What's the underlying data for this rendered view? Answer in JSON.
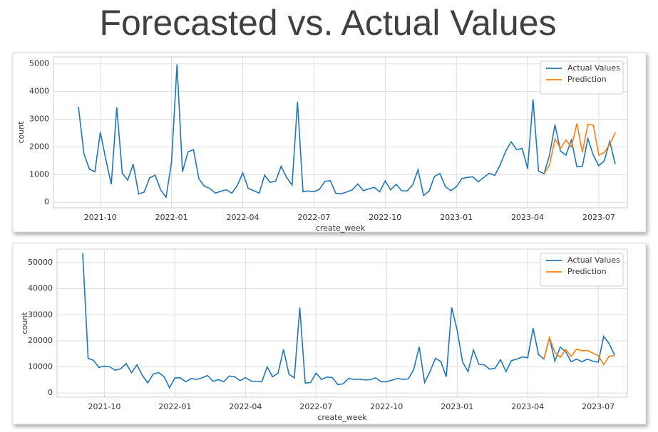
{
  "title": "Forecasted vs. Actual Values",
  "chart_data": [
    {
      "type": "line",
      "xlabel": "create_week",
      "ylabel": "count",
      "categories": [
        null,
        null,
        null,
        null,
        "2021-10",
        null,
        null,
        null,
        null,
        null,
        null,
        null,
        null,
        null,
        null,
        null,
        null,
        "2022-01",
        null,
        null,
        null,
        null,
        null,
        null,
        null,
        null,
        null,
        null,
        null,
        null,
        "2022-04",
        null,
        null,
        null,
        null,
        null,
        null,
        null,
        null,
        null,
        null,
        null,
        null,
        "2022-07",
        null,
        null,
        null,
        null,
        null,
        null,
        null,
        null,
        null,
        null,
        null,
        null,
        "2022-10",
        null,
        null,
        null,
        null,
        null,
        null,
        null,
        null,
        null,
        null,
        null,
        null,
        "2023-01",
        null,
        null,
        null,
        null,
        null,
        null,
        null,
        null,
        null,
        null,
        null,
        null,
        "2023-04",
        null,
        null,
        null,
        null,
        null,
        null,
        null,
        null,
        null,
        null,
        null,
        null,
        "2023-07",
        null,
        null,
        null
      ],
      "series": [
        {
          "name": "Actual Values",
          "color": "#1f77b4",
          "values": [
            3450,
            1750,
            1200,
            1100,
            2530,
            1550,
            650,
            3430,
            1050,
            800,
            1380,
            300,
            370,
            880,
            980,
            450,
            180,
            1450,
            4980,
            1100,
            1820,
            1900,
            850,
            580,
            500,
            330,
            400,
            450,
            330,
            600,
            1060,
            500,
            420,
            330,
            980,
            720,
            760,
            1300,
            900,
            620,
            3630,
            380,
            410,
            380,
            470,
            760,
            780,
            320,
            310,
            370,
            450,
            660,
            420,
            480,
            540,
            380,
            770,
            450,
            650,
            420,
            410,
            620,
            1170,
            250,
            400,
            930,
            1040,
            560,
            420,
            560,
            860,
            900,
            920,
            740,
            900,
            1050,
            970,
            1350,
            1850,
            2180,
            1900,
            1950,
            1220,
            3720,
            1130,
            1030,
            1700,
            2800,
            1850,
            1700,
            2250,
            1280,
            1300,
            2300,
            1700,
            1320,
            1500,
            2200,
            1380
          ]
        },
        {
          "name": "Prediction",
          "color": "#ff7f0e",
          "values": [
            null,
            null,
            null,
            null,
            null,
            null,
            null,
            null,
            null,
            null,
            null,
            null,
            null,
            null,
            null,
            null,
            null,
            null,
            null,
            null,
            null,
            null,
            null,
            null,
            null,
            null,
            null,
            null,
            null,
            null,
            null,
            null,
            null,
            null,
            null,
            null,
            null,
            null,
            null,
            null,
            null,
            null,
            null,
            null,
            null,
            null,
            null,
            null,
            null,
            null,
            null,
            null,
            null,
            null,
            null,
            null,
            null,
            null,
            null,
            null,
            null,
            null,
            null,
            null,
            null,
            null,
            null,
            null,
            null,
            null,
            null,
            null,
            null,
            null,
            null,
            null,
            null,
            null,
            null,
            null,
            null,
            null,
            null,
            null,
            null,
            1030,
            1350,
            2280,
            1950,
            2250,
            2000,
            2850,
            1800,
            2820,
            2780,
            1700,
            1800,
            2100,
            2520
          ]
        }
      ],
      "ylim": [
        -200,
        5250
      ],
      "yticks": [
        0,
        1000,
        2000,
        3000,
        4000,
        5000
      ],
      "grid": true,
      "legend": "upper right"
    },
    {
      "type": "line",
      "xlabel": "create_week",
      "ylabel": "count",
      "categories": [
        null,
        null,
        null,
        null,
        "2021-10",
        null,
        null,
        null,
        null,
        null,
        null,
        null,
        null,
        null,
        null,
        null,
        null,
        "2022-01",
        null,
        null,
        null,
        null,
        null,
        null,
        null,
        null,
        null,
        null,
        null,
        null,
        "2022-04",
        null,
        null,
        null,
        null,
        null,
        null,
        null,
        null,
        null,
        null,
        null,
        null,
        "2022-07",
        null,
        null,
        null,
        null,
        null,
        null,
        null,
        null,
        null,
        null,
        null,
        null,
        "2022-10",
        null,
        null,
        null,
        null,
        null,
        null,
        null,
        null,
        null,
        null,
        null,
        null,
        "2023-01",
        null,
        null,
        null,
        null,
        null,
        null,
        null,
        null,
        null,
        null,
        null,
        null,
        "2023-04",
        null,
        null,
        null,
        null,
        null,
        null,
        null,
        null,
        null,
        null,
        null,
        null,
        "2023-07",
        null,
        null,
        null
      ],
      "series": [
        {
          "name": "Actual Values",
          "color": "#1f77b4",
          "values": [
            53500,
            13300,
            12500,
            9800,
            10300,
            10000,
            8700,
            9300,
            11300,
            7800,
            10800,
            6700,
            3900,
            7300,
            7800,
            6200,
            2000,
            5800,
            5800,
            4300,
            5500,
            5200,
            5800,
            6700,
            4500,
            5100,
            4300,
            6500,
            6200,
            4700,
            5900,
            4600,
            4400,
            4300,
            10000,
            6200,
            7600,
            16700,
            7200,
            5800,
            32800,
            3800,
            4000,
            7600,
            5200,
            6100,
            5900,
            3200,
            3500,
            5600,
            5200,
            5300,
            5000,
            5100,
            5800,
            4300,
            4300,
            4900,
            5600,
            5200,
            5400,
            9000,
            17700,
            4000,
            8200,
            13300,
            12000,
            6200,
            32800,
            24200,
            11800,
            8200,
            16500,
            11000,
            10800,
            9100,
            9500,
            12800,
            8200,
            12400,
            13000,
            13800,
            13500,
            24800,
            14700,
            13000,
            21200,
            12200,
            17600,
            15800,
            12000,
            13000,
            12000,
            13000,
            12200,
            11800,
            21700,
            19000,
            14500
          ]
        },
        {
          "name": "Prediction",
          "color": "#ff7f0e",
          "values": [
            null,
            null,
            null,
            null,
            null,
            null,
            null,
            null,
            null,
            null,
            null,
            null,
            null,
            null,
            null,
            null,
            null,
            null,
            null,
            null,
            null,
            null,
            null,
            null,
            null,
            null,
            null,
            null,
            null,
            null,
            null,
            null,
            null,
            null,
            null,
            null,
            null,
            null,
            null,
            null,
            null,
            null,
            null,
            null,
            null,
            null,
            null,
            null,
            null,
            null,
            null,
            null,
            null,
            null,
            null,
            null,
            null,
            null,
            null,
            null,
            null,
            null,
            null,
            null,
            null,
            null,
            null,
            null,
            null,
            null,
            null,
            null,
            null,
            null,
            null,
            null,
            null,
            null,
            null,
            null,
            null,
            null,
            null,
            null,
            null,
            13000,
            21300,
            15500,
            13700,
            16700,
            14000,
            16800,
            16200,
            16300,
            15300,
            14200,
            10900,
            14100,
            14300
          ]
        }
      ],
      "ylim": [
        -1600,
        55200
      ],
      "yticks": [
        0,
        10000,
        20000,
        30000,
        40000,
        50000
      ],
      "grid": true,
      "legend": "upper right"
    }
  ]
}
